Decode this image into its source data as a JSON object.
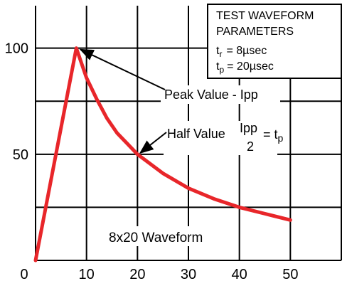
{
  "chart_data": {
    "type": "line",
    "xlim": [
      0,
      60
    ],
    "ylim": [
      0,
      120
    ],
    "x_ticks": [
      0,
      10,
      20,
      30,
      40,
      50
    ],
    "y_ticks": [
      50,
      100
    ],
    "x_tick_labels": [
      "0",
      "10",
      "20",
      "30",
      "40",
      "50"
    ],
    "y_tick_labels": [
      "50",
      "100"
    ],
    "grid": true,
    "series": [
      {
        "color": "#e8262a",
        "x": [
          0,
          2,
          4,
          6,
          8,
          10,
          12,
          14,
          16,
          18,
          20,
          25,
          30,
          35,
          40,
          45,
          50
        ],
        "y": [
          0,
          25,
          50,
          75,
          100,
          86,
          76,
          67,
          60,
          55,
          50,
          41,
          34,
          29,
          25,
          22,
          19
        ]
      }
    ],
    "parameters_box": {
      "title_line1": "TEST WAVEFORM",
      "title_line2": "PARAMETERS",
      "tr_symbol": "t",
      "tr_sub": "r",
      "tr_value": "= 8µsec",
      "tp_symbol": "t",
      "tp_sub": "p",
      "tp_value": "= 20µsec"
    },
    "annotations": {
      "peak_label": "Peak Value - Ipp",
      "half_label": "Half Value",
      "half_numerator": "Ipp",
      "half_denominator": "2",
      "half_eq": "= t",
      "half_eq_sub": "p",
      "waveform_label": "8x20 Waveform"
    },
    "peak_point": [
      8,
      100
    ],
    "half_point": [
      20,
      50
    ]
  },
  "colors": {
    "curve": "#e8262a",
    "grid": "#000000"
  }
}
